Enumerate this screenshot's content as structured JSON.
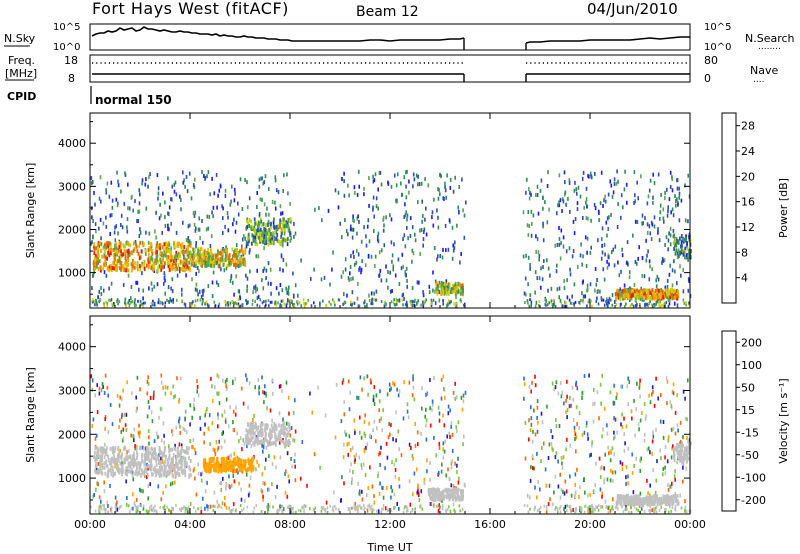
{
  "header": {
    "station": "Fort Hays West (fitACF)",
    "beam": "Beam 12",
    "date": "04/Jun/2010"
  },
  "aux_panels": {
    "nsky_label": "N.Sky",
    "nsearch_label": "N.Search",
    "nsearch_dots": "........",
    "noise_ticks": [
      "10^5",
      "10^0"
    ],
    "freq_label_1": "Freq.",
    "freq_label_2": "[MHz]",
    "freq_ticks": [
      "18",
      "8"
    ],
    "nave_label": "Nave",
    "nave_dots": "....",
    "nave_ticks": [
      "80",
      "0"
    ],
    "cpid_label": "CPID",
    "cpid_value": "normal 150"
  },
  "colors": {
    "power_scale": [
      "#1a1aff",
      "#2e50b4",
      "#2d8c5a",
      "#5aa550",
      "#c8d200",
      "#f5a500",
      "#f06400",
      "#e61e00",
      "#ff0000"
    ],
    "velocity_scale": [
      "#ff0000",
      "#ff6600",
      "#ffa500",
      "#c0c0c0",
      "#c0c0c0",
      "#7ac842",
      "#2aa02a",
      "#2a6ed2",
      "#1a1acc"
    ]
  },
  "chart_data": [
    {
      "type": "heatmap",
      "name": "power",
      "x_ticks": [
        "00:00",
        "04:00",
        "08:00",
        "12:00",
        "16:00",
        "20:00",
        "00:00"
      ],
      "x_tick_hours": [
        0,
        4,
        8,
        12,
        16,
        20,
        24
      ],
      "xlim": [
        0,
        24
      ],
      "ylabel": "Slant Range [km]",
      "y_ticks": [
        "1000",
        "2000",
        "3000",
        "4000"
      ],
      "y_tick_values": [
        1000,
        2000,
        3000,
        4000
      ],
      "ylim": [
        180,
        4700
      ],
      "data_gap_hours": [
        15.0,
        17.3
      ],
      "colorbar": {
        "label": "Power [dB]",
        "ticks": [
          "4",
          "8",
          "12",
          "16",
          "20",
          "24",
          "28"
        ],
        "values": [
          4,
          8,
          12,
          16,
          20,
          24,
          28
        ],
        "range": [
          0,
          30
        ]
      },
      "echo_bands": [
        {
          "t0": 0.1,
          "t1": 4.0,
          "r0": 1000,
          "r1": 1650,
          "value": 18
        },
        {
          "t0": 4.0,
          "t1": 6.2,
          "r0": 1100,
          "r1": 1500,
          "value": 16
        },
        {
          "t0": 6.2,
          "t1": 8.0,
          "r0": 1600,
          "r1": 2200,
          "value": 10
        },
        {
          "t0": 13.8,
          "t1": 14.9,
          "r0": 450,
          "r1": 700,
          "value": 14
        },
        {
          "t0": 21.0,
          "t1": 23.5,
          "r0": 350,
          "r1": 550,
          "value": 18
        },
        {
          "t0": 23.3,
          "t1": 24.0,
          "r0": 1300,
          "r1": 1800,
          "value": 8
        }
      ],
      "scatter_fill": {
        "range_top_km": 3300,
        "mean_value": 6
      }
    },
    {
      "type": "heatmap",
      "name": "velocity",
      "x_ticks": [
        "00:00",
        "04:00",
        "08:00",
        "12:00",
        "16:00",
        "20:00",
        "00:00"
      ],
      "x_tick_hours": [
        0,
        4,
        8,
        12,
        16,
        20,
        24
      ],
      "xlim": [
        0,
        24
      ],
      "xlabel": "Time UT",
      "ylabel": "Slant Range [km]",
      "y_ticks": [
        "1000",
        "2000",
        "3000",
        "4000"
      ],
      "y_tick_values": [
        1000,
        2000,
        3000,
        4000
      ],
      "ylim": [
        180,
        4700
      ],
      "data_gap_hours": [
        15.0,
        17.3
      ],
      "colorbar": {
        "label": "Velocity [m s⁻¹]",
        "ticks": [
          "200",
          "100",
          "50",
          "15",
          "-15",
          "-50",
          "-100",
          "-200"
        ],
        "values": [
          200,
          100,
          50,
          15,
          -15,
          -50,
          -100,
          -200
        ],
        "range": [
          -250,
          250
        ]
      },
      "echo_bands": [
        {
          "t0": 0.1,
          "t1": 4.0,
          "r0": 1000,
          "r1": 1650,
          "value": 0
        },
        {
          "t0": 4.5,
          "t1": 6.5,
          "r0": 1100,
          "r1": 1400,
          "value": -120
        },
        {
          "t0": 6.2,
          "t1": 8.0,
          "r0": 1700,
          "r1": 2200,
          "value": 0
        },
        {
          "t0": 13.5,
          "t1": 14.9,
          "r0": 450,
          "r1": 700,
          "value": -10
        },
        {
          "t0": 21.0,
          "t1": 23.5,
          "r0": 350,
          "r1": 550,
          "value": 0
        },
        {
          "t0": 23.3,
          "t1": 24.0,
          "r0": 1300,
          "r1": 1800,
          "value": 5
        }
      ],
      "scatter_fill": {
        "range_top_km": 3300,
        "mean_value": 0
      }
    }
  ]
}
